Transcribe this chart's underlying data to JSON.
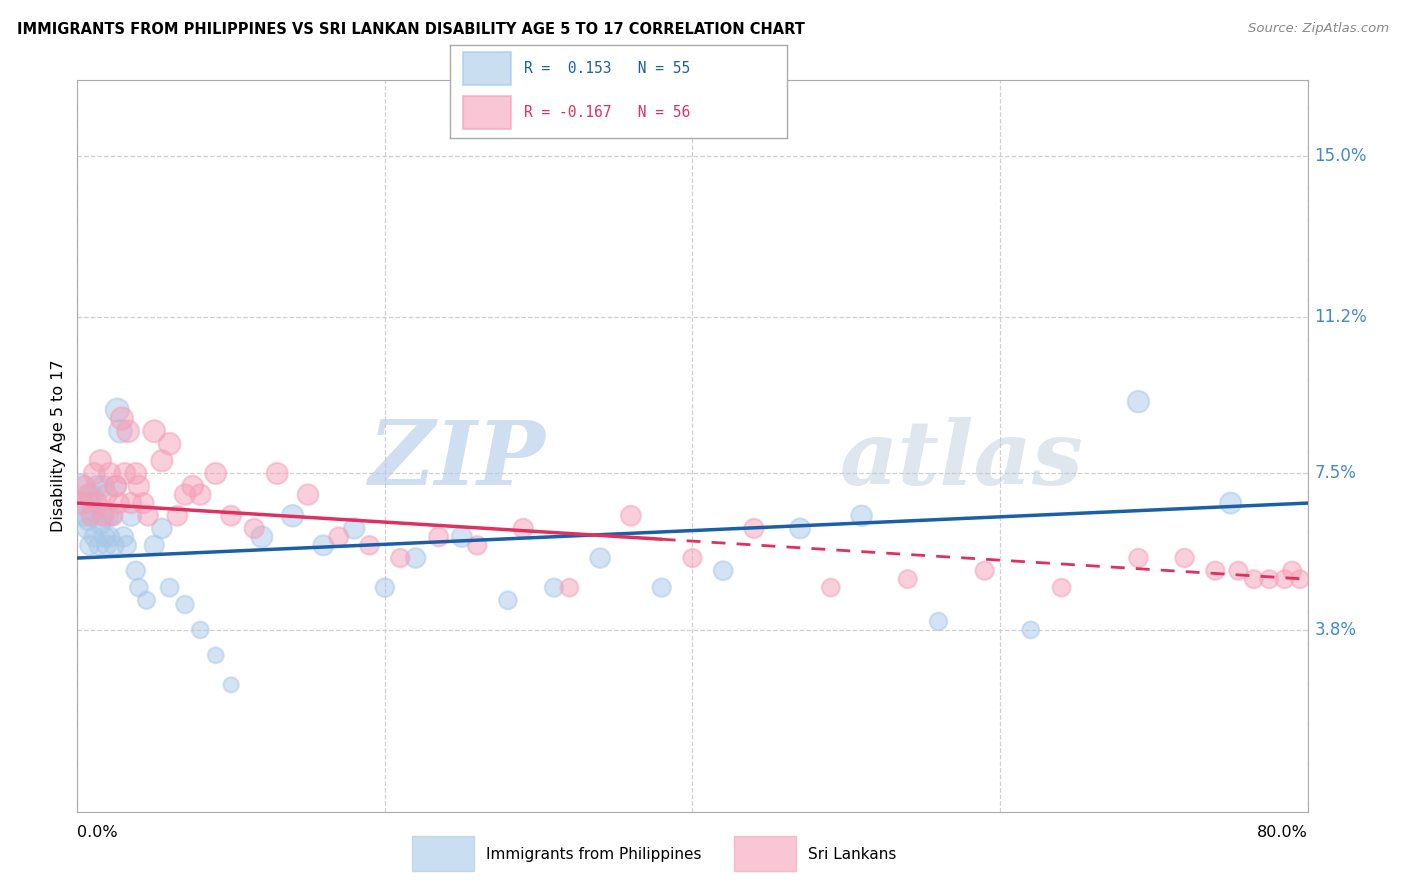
{
  "title": "IMMIGRANTS FROM PHILIPPINES VS SRI LANKAN DISABILITY AGE 5 TO 17 CORRELATION CHART",
  "source": "Source: ZipAtlas.com",
  "ylabel": "Disability Age 5 to 17",
  "yticks": [
    0.038,
    0.075,
    0.112,
    0.15
  ],
  "ytick_labels": [
    "3.8%",
    "7.5%",
    "11.2%",
    "15.0%"
  ],
  "xlim": [
    0.0,
    0.8
  ],
  "ylim": [
    -0.005,
    0.168
  ],
  "legend_blue_r": "R =  0.153",
  "legend_blue_n": "N = 55",
  "legend_pink_r": "R = -0.167",
  "legend_pink_n": "N = 56",
  "legend_blue_label": "Immigrants from Philippines",
  "legend_pink_label": "Sri Lankans",
  "blue_color": "#a8c8e8",
  "pink_color": "#f4a0b8",
  "blue_line_color": "#1a5fa8",
  "pink_line_color": "#e03060",
  "right_label_color": "#4488cc",
  "grid_color": "#d0d0d0",
  "blue_scatter_x": [
    0.002,
    0.004,
    0.005,
    0.006,
    0.007,
    0.008,
    0.009,
    0.01,
    0.011,
    0.012,
    0.013,
    0.014,
    0.015,
    0.016,
    0.017,
    0.018,
    0.019,
    0.02,
    0.021,
    0.022,
    0.024,
    0.025,
    0.026,
    0.028,
    0.03,
    0.032,
    0.035,
    0.038,
    0.04,
    0.045,
    0.05,
    0.055,
    0.06,
    0.07,
    0.08,
    0.09,
    0.1,
    0.12,
    0.14,
    0.16,
    0.18,
    0.2,
    0.22,
    0.25,
    0.28,
    0.31,
    0.34,
    0.38,
    0.42,
    0.47,
    0.51,
    0.56,
    0.62,
    0.69,
    0.75
  ],
  "blue_scatter_y": [
    0.072,
    0.068,
    0.065,
    0.062,
    0.064,
    0.058,
    0.07,
    0.066,
    0.06,
    0.068,
    0.072,
    0.058,
    0.063,
    0.065,
    0.072,
    0.06,
    0.058,
    0.065,
    0.06,
    0.065,
    0.058,
    0.072,
    0.09,
    0.085,
    0.06,
    0.058,
    0.065,
    0.052,
    0.048,
    0.045,
    0.058,
    0.062,
    0.048,
    0.044,
    0.038,
    0.032,
    0.025,
    0.06,
    0.065,
    0.058,
    0.062,
    0.048,
    0.055,
    0.06,
    0.045,
    0.048,
    0.055,
    0.048,
    0.052,
    0.062,
    0.065,
    0.04,
    0.038,
    0.092,
    0.068
  ],
  "blue_scatter_s": [
    300,
    200,
    220,
    200,
    220,
    190,
    230,
    210,
    195,
    215,
    225,
    190,
    210,
    215,
    225,
    200,
    190,
    215,
    200,
    215,
    190,
    225,
    280,
    270,
    200,
    190,
    215,
    180,
    165,
    155,
    195,
    205,
    170,
    160,
    145,
    130,
    120,
    230,
    240,
    210,
    220,
    180,
    200,
    210,
    165,
    175,
    200,
    175,
    185,
    210,
    220,
    160,
    148,
    240,
    230
  ],
  "pink_scatter_x": [
    0.003,
    0.005,
    0.007,
    0.009,
    0.011,
    0.013,
    0.015,
    0.017,
    0.019,
    0.021,
    0.023,
    0.025,
    0.027,
    0.029,
    0.031,
    0.033,
    0.035,
    0.038,
    0.04,
    0.043,
    0.046,
    0.05,
    0.055,
    0.06,
    0.065,
    0.07,
    0.075,
    0.08,
    0.09,
    0.1,
    0.115,
    0.13,
    0.15,
    0.17,
    0.19,
    0.21,
    0.235,
    0.26,
    0.29,
    0.32,
    0.36,
    0.4,
    0.44,
    0.49,
    0.54,
    0.59,
    0.64,
    0.69,
    0.72,
    0.74,
    0.755,
    0.765,
    0.775,
    0.785,
    0.79,
    0.795
  ],
  "pink_scatter_y": [
    0.068,
    0.072,
    0.07,
    0.065,
    0.075,
    0.068,
    0.078,
    0.065,
    0.07,
    0.075,
    0.065,
    0.072,
    0.068,
    0.088,
    0.075,
    0.085,
    0.068,
    0.075,
    0.072,
    0.068,
    0.065,
    0.085,
    0.078,
    0.082,
    0.065,
    0.07,
    0.072,
    0.07,
    0.075,
    0.065,
    0.062,
    0.075,
    0.07,
    0.06,
    0.058,
    0.055,
    0.06,
    0.058,
    0.062,
    0.048,
    0.065,
    0.055,
    0.062,
    0.048,
    0.05,
    0.052,
    0.048,
    0.055,
    0.055,
    0.052,
    0.052,
    0.05,
    0.05,
    0.05,
    0.052,
    0.05
  ],
  "pink_scatter_s": [
    250,
    215,
    220,
    205,
    230,
    215,
    240,
    210,
    220,
    235,
    205,
    225,
    215,
    260,
    230,
    250,
    215,
    230,
    225,
    215,
    205,
    250,
    235,
    245,
    205,
    220,
    225,
    220,
    230,
    205,
    195,
    230,
    220,
    190,
    180,
    175,
    190,
    180,
    195,
    165,
    205,
    175,
    195,
    165,
    170,
    175,
    165,
    180,
    180,
    175,
    175,
    170,
    170,
    170,
    175,
    170
  ]
}
